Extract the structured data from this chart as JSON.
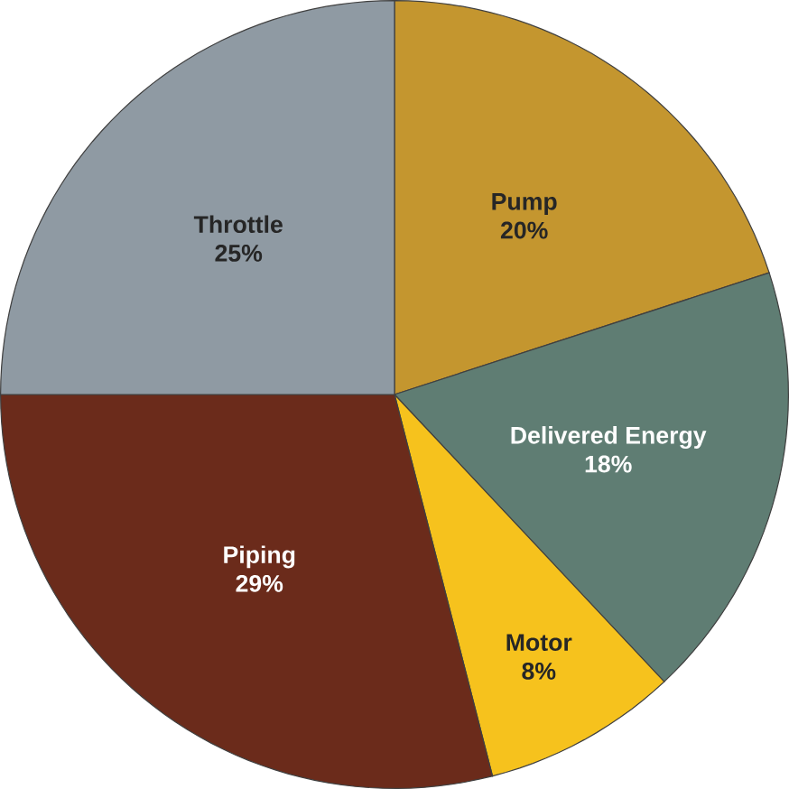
{
  "chart_data": {
    "type": "pie",
    "categories": [
      "Pump",
      "Delivered Energy",
      "Motor",
      "Piping",
      "Throttle"
    ],
    "values": [
      20,
      18,
      8,
      29,
      25
    ],
    "value_labels": [
      "20%",
      "18%",
      "8%",
      "29%",
      "25%"
    ],
    "colors": [
      "#c4962f",
      "#5f7d73",
      "#f6c21d",
      "#6b2b1b",
      "#8f9aa3"
    ]
  }
}
